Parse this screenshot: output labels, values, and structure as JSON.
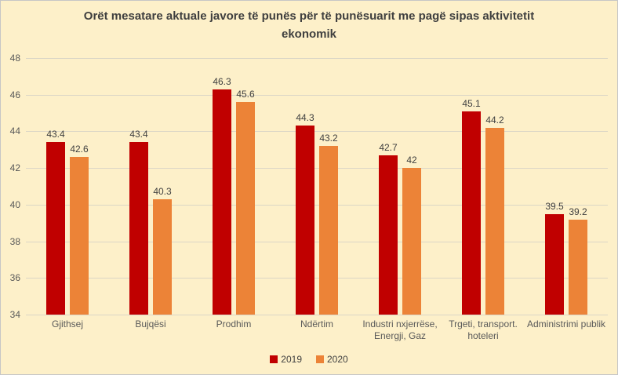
{
  "page": {
    "background_color": "#FDF0C9",
    "border_color": "#C6C6C6"
  },
  "chart_data": {
    "type": "bar",
    "title": "Orët mesatare aktuale javore të punës për të punësuarit me pagë sipas aktivitetit ekonomik",
    "categories": [
      "Gjithsej",
      "Bujqësi",
      "Prodhim",
      "Ndërtim",
      "Industri nxjerrëse, Energji, Gaz",
      "Trgeti, transport. hoteleri",
      "Administrimi publik"
    ],
    "series": [
      {
        "name": "2019",
        "color": "#C00000",
        "values": [
          43.4,
          43.4,
          46.3,
          44.3,
          42.7,
          45.1,
          39.5
        ]
      },
      {
        "name": "2020",
        "color": "#EC8337",
        "values": [
          42.6,
          40.3,
          45.6,
          43.2,
          42,
          44.2,
          39.2
        ]
      }
    ],
    "ylim": [
      34,
      48
    ],
    "yticks": [
      34,
      36,
      38,
      40,
      42,
      44,
      46,
      48
    ],
    "grid": "horizontal",
    "gridline_color": "#DBD6C6",
    "legend_position": "bottom",
    "data_labels": true,
    "title_color": "#3F3F3F",
    "axis_text_color": "#595959",
    "data_label_color": "#404040"
  }
}
